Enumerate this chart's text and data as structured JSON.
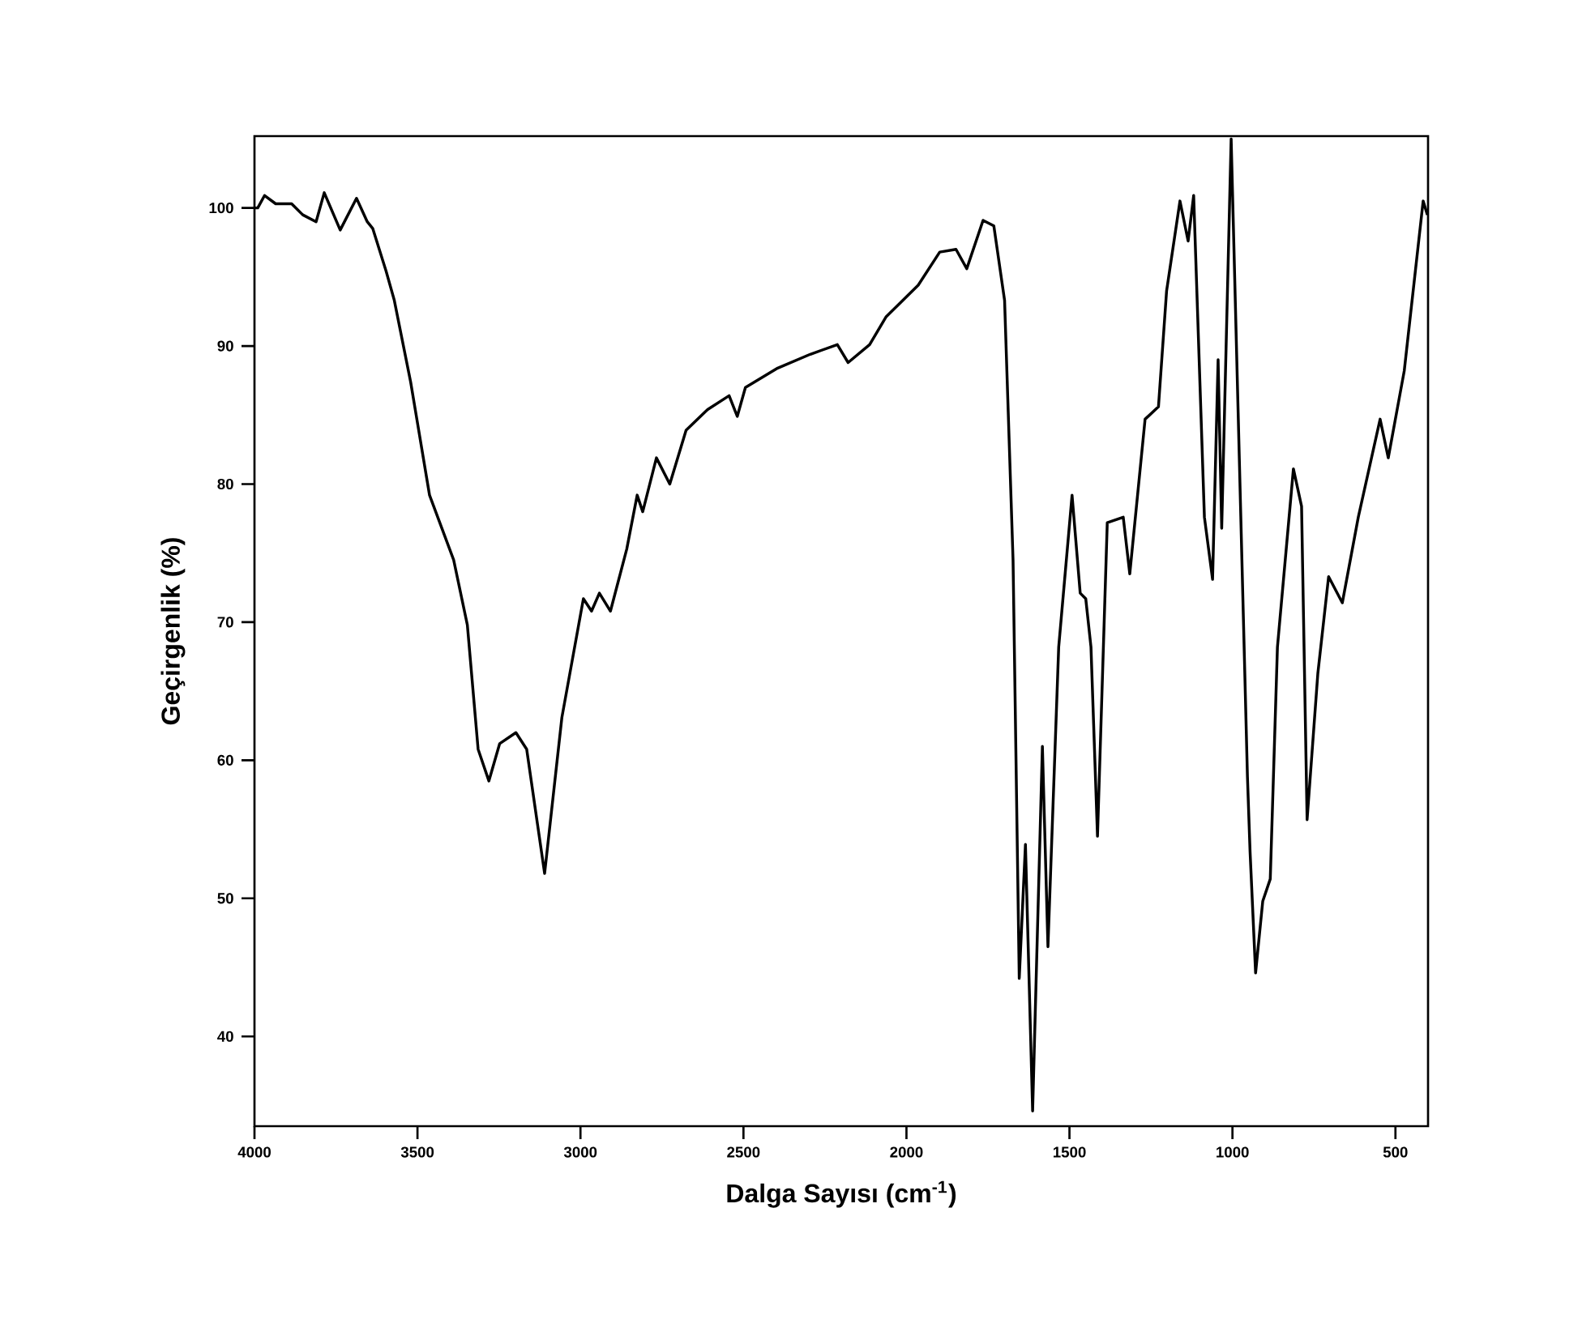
{
  "chart_data": {
    "type": "line",
    "xlabel": "Dalga Sayısı (cm$^{-1}$)",
    "ylabel": "Geçirgenlik (%)",
    "xlim": [
      4000,
      400
    ],
    "ylim": [
      33.5,
      105.2
    ],
    "xticks": [
      4000,
      3500,
      3000,
      2500,
      2000,
      1500,
      1000,
      500
    ],
    "yticks": [
      40,
      50,
      60,
      70,
      80,
      90,
      100
    ],
    "x": [
      4000,
      3990,
      3969,
      3935,
      3886,
      3852,
      3811,
      3786,
      3737,
      3687,
      3654,
      3637,
      3596,
      3571,
      3521,
      3463,
      3389,
      3347,
      3314,
      3281,
      3248,
      3198,
      3165,
      3110,
      3057,
      3024,
      2991,
      2966,
      2942,
      2908,
      2858,
      2826,
      2809,
      2767,
      2726,
      2676,
      2610,
      2544,
      2519,
      2494,
      2395,
      2295,
      2212,
      2179,
      2113,
      2063,
      1964,
      1898,
      1848,
      1815,
      1765,
      1732,
      1699,
      1673,
      1654,
      1635,
      1613,
      1583,
      1566,
      1533,
      1492,
      1467,
      1450,
      1434,
      1414,
      1384,
      1335,
      1315,
      1268,
      1227,
      1202,
      1161,
      1136,
      1119,
      1086,
      1061,
      1044,
      1033,
      1004,
      954,
      946,
      929,
      907,
      884,
      862,
      813,
      788,
      771,
      738,
      705,
      663,
      614,
      547,
      522,
      473,
      415,
      402
    ],
    "series": [
      {
        "color": "#000000",
        "values": [
          100,
          100,
          100.9,
          100.3,
          100.3,
          99.5,
          99,
          101.1,
          98.4,
          100.7,
          99,
          98.5,
          95.4,
          93.3,
          87.4,
          79.2,
          74.5,
          69.8,
          60.8,
          58.5,
          61.2,
          62,
          60.8,
          51.8,
          63.1,
          67.4,
          71.7,
          70.8,
          72.1,
          70.8,
          75.3,
          79.2,
          78,
          81.9,
          80,
          83.9,
          85.4,
          86.4,
          84.9,
          87,
          88.4,
          89.4,
          90.1,
          88.8,
          90.1,
          92.1,
          94.4,
          96.8,
          97,
          95.6,
          99.1,
          98.7,
          93.3,
          74.5,
          44.2,
          53.9,
          34.6,
          61,
          46.5,
          68.2,
          79.2,
          72.1,
          71.7,
          68.2,
          54.5,
          77.2,
          77.6,
          73.5,
          84.7,
          85.6,
          94,
          100.5,
          97.6,
          100.9,
          77.6,
          73.1,
          89,
          76.8,
          105,
          58.8,
          53.4,
          44.6,
          49.8,
          51.4,
          68.2,
          81.1,
          78.4,
          55.7,
          66.3,
          73.3,
          71.4,
          77.6,
          84.7,
          81.9,
          88.2,
          100.5,
          99.5
        ]
      }
    ]
  }
}
